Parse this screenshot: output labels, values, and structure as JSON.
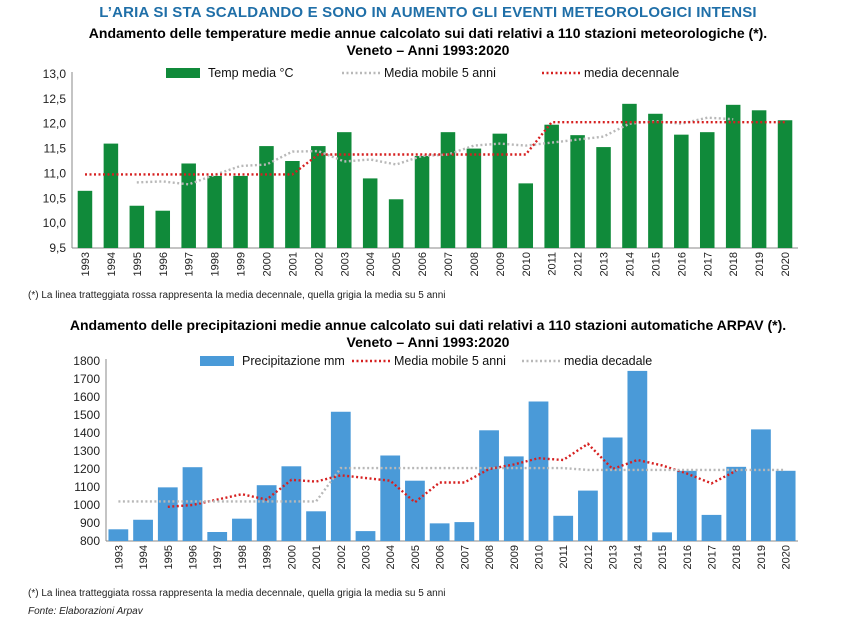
{
  "headline": "L’ARIA SI STA SCALDANDO E SONO IN AUMENTO GLI EVENTI METEOROLOGICI INTENSI",
  "note": "(*) La linea tratteggiata rossa rappresenta la media decennale, quella grigia la media su 5 anni",
  "source": "Fonte: Elaborazioni Arpav",
  "colors": {
    "headline": "#1f6fa8",
    "temp_bar": "#108a3a",
    "precip_bar": "#4a9ad8",
    "red_line": "#d62020",
    "grey_line": "#b8b8b8"
  },
  "chart_data": [
    {
      "type": "bar",
      "title": "Andamento delle temperature medie annue calcolato sui dati relativi a 110 stazioni meteorologiche (*).",
      "subtitle": "Veneto – Anni 1993:2020",
      "ylim": [
        9.5,
        13.0
      ],
      "yticks": [
        "9,5",
        "10,0",
        "10,5",
        "11,0",
        "11,5",
        "12,0",
        "12,5",
        "13,0"
      ],
      "categories": [
        "1993",
        "1994",
        "1995",
        "1996",
        "1997",
        "1998",
        "1999",
        "2000",
        "2001",
        "2002",
        "2003",
        "2004",
        "2005",
        "2006",
        "2007",
        "2008",
        "2009",
        "2010",
        "2011",
        "2012",
        "2013",
        "2014",
        "2015",
        "2016",
        "2017",
        "2018",
        "2019",
        "2020"
      ],
      "series": [
        {
          "name": "Temp media °C",
          "kind": "bar",
          "values": [
            10.65,
            11.6,
            10.35,
            10.25,
            11.2,
            10.95,
            10.95,
            11.55,
            11.25,
            11.55,
            11.83,
            10.9,
            10.48,
            11.35,
            11.83,
            11.5,
            11.8,
            10.8,
            11.98,
            11.77,
            11.53,
            12.4,
            12.2,
            11.78,
            11.83,
            12.38,
            12.27,
            12.07
          ]
        },
        {
          "name": "Media mobile 5 anni",
          "kind": "line-dotted-grey",
          "values": [
            null,
            null,
            10.82,
            10.84,
            10.78,
            10.97,
            11.15,
            11.18,
            11.44,
            11.45,
            11.24,
            11.28,
            11.18,
            11.35,
            11.38,
            11.56,
            11.6,
            11.56,
            11.62,
            11.68,
            11.74,
            12.0,
            12.05,
            12.0,
            12.12,
            12.09,
            null,
            null
          ]
        },
        {
          "name": "media decennale",
          "kind": "line-dotted-red",
          "values": [
            10.98,
            10.98,
            10.98,
            10.98,
            10.98,
            10.98,
            10.98,
            10.98,
            10.98,
            11.38,
            11.38,
            11.38,
            11.38,
            11.38,
            11.38,
            11.38,
            11.38,
            11.38,
            12.03,
            12.03,
            12.03,
            12.03,
            12.03,
            12.03,
            12.03,
            12.03,
            12.03,
            12.03
          ]
        }
      ]
    },
    {
      "type": "bar",
      "title": "Andamento delle precipitazioni medie annue calcolato sui dati relativi a 110 stazioni automatiche ARPAV (*).",
      "subtitle": "Veneto – Anni 1993:2020",
      "ylim": [
        800,
        1800
      ],
      "yticks": [
        "800",
        "900",
        "1000",
        "1100",
        "1200",
        "1300",
        "1400",
        "1500",
        "1600",
        "1700",
        "1800"
      ],
      "categories": [
        "1993",
        "1994",
        "1995",
        "1996",
        "1997",
        "1998",
        "1999",
        "2000",
        "2001",
        "2002",
        "2003",
        "2004",
        "2005",
        "2006",
        "2007",
        "2008",
        "2009",
        "2010",
        "2011",
        "2012",
        "2013",
        "2014",
        "2015",
        "2016",
        "2017",
        "2018",
        "2019",
        "2020"
      ],
      "series": [
        {
          "name": "Precipitazione mm",
          "kind": "bar",
          "values": [
            865,
            918,
            1098,
            1210,
            850,
            924,
            1110,
            1215,
            965,
            1518,
            855,
            1275,
            1135,
            898,
            905,
            1415,
            1270,
            1575,
            940,
            1080,
            1375,
            1745,
            848,
            1190,
            945,
            1212,
            1420,
            1190
          ]
        },
        {
          "name": "Media mobile 5 anni",
          "kind": "line-dotted-red",
          "values": [
            null,
            null,
            990,
            1000,
            1030,
            1060,
            1030,
            1140,
            1130,
            1165,
            1150,
            1135,
            1015,
            1125,
            1125,
            1200,
            1225,
            1260,
            1250,
            1340,
            1200,
            1250,
            1220,
            1175,
            1120,
            1190,
            null,
            null
          ]
        },
        {
          "name": "media decadale",
          "kind": "line-dotted-grey",
          "values": [
            1020,
            1020,
            1020,
            1020,
            1020,
            1020,
            1020,
            1020,
            1020,
            1205,
            1205,
            1205,
            1205,
            1205,
            1205,
            1205,
            1205,
            1205,
            1205,
            1195,
            1195,
            1195,
            1195,
            1195,
            1195,
            1195,
            1195,
            1195
          ]
        }
      ]
    }
  ]
}
